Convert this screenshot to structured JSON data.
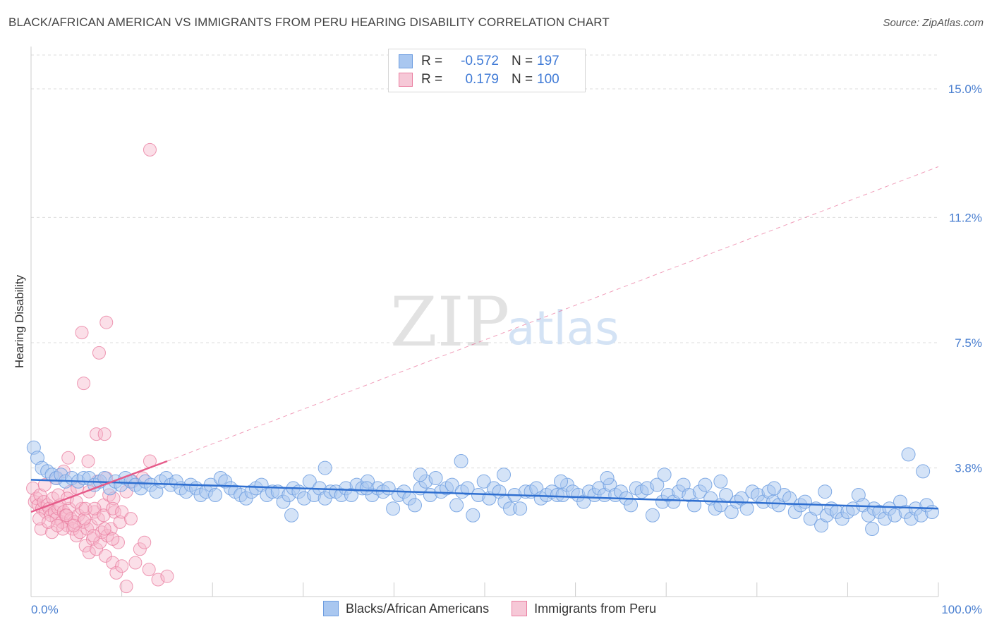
{
  "header": {
    "title": "BLACK/AFRICAN AMERICAN VS IMMIGRANTS FROM PERU HEARING DISABILITY CORRELATION CHART",
    "source": "Source: ZipAtlas.com"
  },
  "watermark": {
    "zip": "ZIP",
    "atlas": "atlas"
  },
  "legend": {
    "rows": [
      {
        "r_label": "R =",
        "r_value": "-0.572",
        "n_label": "N =",
        "n_value": "197"
      },
      {
        "r_label": "R =",
        "r_value": "0.179",
        "n_label": "N =",
        "n_value": "100"
      }
    ]
  },
  "bottom_legend": {
    "items": [
      {
        "label": "Blacks/African Americans"
      },
      {
        "label": "Immigrants from Peru"
      }
    ]
  },
  "colors": {
    "blue_fill": "#a9c7f0",
    "blue_stroke": "#6d9de0",
    "blue_line": "#2f6fd0",
    "pink_fill": "#f6b8cc",
    "pink_stroke": "#ea7fa1",
    "pink_line": "#e65b8a",
    "grid": "#dcdcdc",
    "tick_text": "#4a7fd0"
  },
  "chart_data": {
    "type": "scatter",
    "title": "BLACK/AFRICAN AMERICAN VS IMMIGRANTS FROM PERU HEARING DISABILITY CORRELATION CHART",
    "ylabel": "Hearing Disability",
    "xlabel": "",
    "xlim": [
      0,
      100
    ],
    "ylim": [
      0,
      16
    ],
    "x_tick_labels": [
      "0.0%",
      "100.0%"
    ],
    "y_ticks": [
      {
        "value": 3.8,
        "label": "3.8%"
      },
      {
        "value": 7.5,
        "label": "7.5%"
      },
      {
        "value": 11.2,
        "label": "11.2%"
      },
      {
        "value": 15.0,
        "label": "15.0%"
      }
    ],
    "grid": "horizontal dashed",
    "legend_position": "top-center",
    "series": [
      {
        "name": "Blacks/African Americans",
        "color": "#6d9de0",
        "trend": {
          "x": [
            0,
            100
          ],
          "y": [
            3.45,
            2.6
          ],
          "style": "solid"
        },
        "points": [
          [
            0.3,
            4.4
          ],
          [
            0.7,
            4.1
          ],
          [
            1.2,
            3.8
          ],
          [
            1.8,
            3.7
          ],
          [
            2.3,
            3.6
          ],
          [
            2.8,
            3.5
          ],
          [
            3.3,
            3.6
          ],
          [
            3.8,
            3.4
          ],
          [
            4.5,
            3.5
          ],
          [
            5.2,
            3.4
          ],
          [
            5.8,
            3.5
          ],
          [
            6.4,
            3.5
          ],
          [
            7.0,
            3.3
          ],
          [
            7.6,
            3.4
          ],
          [
            8.1,
            3.5
          ],
          [
            8.7,
            3.2
          ],
          [
            9.3,
            3.4
          ],
          [
            9.9,
            3.3
          ],
          [
            10.4,
            3.5
          ],
          [
            11.0,
            3.4
          ],
          [
            11.5,
            3.3
          ],
          [
            12.1,
            3.2
          ],
          [
            12.6,
            3.4
          ],
          [
            13.2,
            3.3
          ],
          [
            13.8,
            3.1
          ],
          [
            14.3,
            3.4
          ],
          [
            14.9,
            3.5
          ],
          [
            15.4,
            3.3
          ],
          [
            16.0,
            3.4
          ],
          [
            16.5,
            3.2
          ],
          [
            17.1,
            3.1
          ],
          [
            17.6,
            3.3
          ],
          [
            18.2,
            3.2
          ],
          [
            18.7,
            3.0
          ],
          [
            19.3,
            3.1
          ],
          [
            19.8,
            3.3
          ],
          [
            20.3,
            3.0
          ],
          [
            20.9,
            3.5
          ],
          [
            21.4,
            3.4
          ],
          [
            22.0,
            3.2
          ],
          [
            22.5,
            3.1
          ],
          [
            23.1,
            3.0
          ],
          [
            23.7,
            2.9
          ],
          [
            24.3,
            3.1
          ],
          [
            24.8,
            3.2
          ],
          [
            25.4,
            3.3
          ],
          [
            26.0,
            3.0
          ],
          [
            26.6,
            3.1
          ],
          [
            27.2,
            3.1
          ],
          [
            27.8,
            2.8
          ],
          [
            28.4,
            3.0
          ],
          [
            28.9,
            3.2
          ],
          [
            29.5,
            3.1
          ],
          [
            30.1,
            2.9
          ],
          [
            30.7,
            3.4
          ],
          [
            31.2,
            3.0
          ],
          [
            31.8,
            3.2
          ],
          [
            32.4,
            2.9
          ],
          [
            33.0,
            3.1
          ],
          [
            33.6,
            3.1
          ],
          [
            34.2,
            3.0
          ],
          [
            34.7,
            3.2
          ],
          [
            35.3,
            3.0
          ],
          [
            35.9,
            3.3
          ],
          [
            36.5,
            3.2
          ],
          [
            37.1,
            3.4
          ],
          [
            37.6,
            3.0
          ],
          [
            38.2,
            3.2
          ],
          [
            38.8,
            3.1
          ],
          [
            39.4,
            3.2
          ],
          [
            39.9,
            2.6
          ],
          [
            40.5,
            3.0
          ],
          [
            41.1,
            3.1
          ],
          [
            41.7,
            2.9
          ],
          [
            42.3,
            2.7
          ],
          [
            42.9,
            3.2
          ],
          [
            43.5,
            3.4
          ],
          [
            44.0,
            3.0
          ],
          [
            44.6,
            3.5
          ],
          [
            45.2,
            3.1
          ],
          [
            45.8,
            3.2
          ],
          [
            46.4,
            3.3
          ],
          [
            46.9,
            2.7
          ],
          [
            47.5,
            3.1
          ],
          [
            48.1,
            3.2
          ],
          [
            48.7,
            2.4
          ],
          [
            49.3,
            3.0
          ],
          [
            49.9,
            3.4
          ],
          [
            50.5,
            2.9
          ],
          [
            51.0,
            3.2
          ],
          [
            51.6,
            3.1
          ],
          [
            52.2,
            2.8
          ],
          [
            52.8,
            2.6
          ],
          [
            53.3,
            3.0
          ],
          [
            53.9,
            2.6
          ],
          [
            54.5,
            3.1
          ],
          [
            55.1,
            3.1
          ],
          [
            55.7,
            3.2
          ],
          [
            56.2,
            2.9
          ],
          [
            56.8,
            3.0
          ],
          [
            57.4,
            3.1
          ],
          [
            58.0,
            3.0
          ],
          [
            58.6,
            3.0
          ],
          [
            59.1,
            3.3
          ],
          [
            59.7,
            3.1
          ],
          [
            60.3,
            3.0
          ],
          [
            60.9,
            2.8
          ],
          [
            61.5,
            3.1
          ],
          [
            62.1,
            3.0
          ],
          [
            62.6,
            3.2
          ],
          [
            63.2,
            3.0
          ],
          [
            63.8,
            3.3
          ],
          [
            64.4,
            3.0
          ],
          [
            65.0,
            3.1
          ],
          [
            65.6,
            2.9
          ],
          [
            66.1,
            2.7
          ],
          [
            66.7,
            3.2
          ],
          [
            67.3,
            3.1
          ],
          [
            67.9,
            3.2
          ],
          [
            68.5,
            2.4
          ],
          [
            69.0,
            3.3
          ],
          [
            69.6,
            2.8
          ],
          [
            70.2,
            3.0
          ],
          [
            70.8,
            2.8
          ],
          [
            71.4,
            3.1
          ],
          [
            71.9,
            3.3
          ],
          [
            72.5,
            3.0
          ],
          [
            73.1,
            2.7
          ],
          [
            73.7,
            3.1
          ],
          [
            74.3,
            3.3
          ],
          [
            74.9,
            2.9
          ],
          [
            75.4,
            2.6
          ],
          [
            76.0,
            2.7
          ],
          [
            76.6,
            3.0
          ],
          [
            77.2,
            2.5
          ],
          [
            77.8,
            2.8
          ],
          [
            78.3,
            2.9
          ],
          [
            78.9,
            2.6
          ],
          [
            79.5,
            3.1
          ],
          [
            80.1,
            3.0
          ],
          [
            80.7,
            2.8
          ],
          [
            81.3,
            3.1
          ],
          [
            81.8,
            2.8
          ],
          [
            82.4,
            2.7
          ],
          [
            83.0,
            3.0
          ],
          [
            83.6,
            2.9
          ],
          [
            84.2,
            2.5
          ],
          [
            84.8,
            2.7
          ],
          [
            85.3,
            2.8
          ],
          [
            85.9,
            2.3
          ],
          [
            86.5,
            2.6
          ],
          [
            87.1,
            2.1
          ],
          [
            87.7,
            2.4
          ],
          [
            88.2,
            2.6
          ],
          [
            88.8,
            2.5
          ],
          [
            89.4,
            2.3
          ],
          [
            90.0,
            2.5
          ],
          [
            90.6,
            2.6
          ],
          [
            91.2,
            3.0
          ],
          [
            91.7,
            2.7
          ],
          [
            92.3,
            2.4
          ],
          [
            92.9,
            2.6
          ],
          [
            93.5,
            2.5
          ],
          [
            94.1,
            2.3
          ],
          [
            94.6,
            2.6
          ],
          [
            95.2,
            2.4
          ],
          [
            95.8,
            2.8
          ],
          [
            96.4,
            2.5
          ],
          [
            97.0,
            2.3
          ],
          [
            97.5,
            2.6
          ],
          [
            98.1,
            2.4
          ],
          [
            98.7,
            2.7
          ],
          [
            99.3,
            2.5
          ],
          [
            28.7,
            2.4
          ],
          [
            32.4,
            3.8
          ],
          [
            37.0,
            3.2
          ],
          [
            42.9,
            3.6
          ],
          [
            47.4,
            4.0
          ],
          [
            52.1,
            3.6
          ],
          [
            58.4,
            3.4
          ],
          [
            63.5,
            3.5
          ],
          [
            69.8,
            3.6
          ],
          [
            76.0,
            3.4
          ],
          [
            81.9,
            3.2
          ],
          [
            87.5,
            3.1
          ],
          [
            92.7,
            2.0
          ],
          [
            96.7,
            4.2
          ],
          [
            98.3,
            3.7
          ]
        ]
      },
      {
        "name": "Immigrants from Peru",
        "color": "#ea7fa1",
        "trend": {
          "x": [
            0,
            15
          ],
          "y": [
            2.5,
            4.0
          ],
          "style": "solid",
          "extended_to": [
            100,
            12.7
          ],
          "extended_style": "dashed"
        },
        "points": [
          [
            0.2,
            3.2
          ],
          [
            0.4,
            2.8
          ],
          [
            0.6,
            2.9
          ],
          [
            0.8,
            2.7
          ],
          [
            1.0,
            3.0
          ],
          [
            1.2,
            2.6
          ],
          [
            1.4,
            2.8
          ],
          [
            1.6,
            2.5
          ],
          [
            1.8,
            2.7
          ],
          [
            2.0,
            2.6
          ],
          [
            2.2,
            2.4
          ],
          [
            2.4,
            2.9
          ],
          [
            2.6,
            2.5
          ],
          [
            2.8,
            2.3
          ],
          [
            3.0,
            2.6
          ],
          [
            3.2,
            2.7
          ],
          [
            3.4,
            2.2
          ],
          [
            3.6,
            2.5
          ],
          [
            3.8,
            2.4
          ],
          [
            4.0,
            2.1
          ],
          [
            4.2,
            2.6
          ],
          [
            4.4,
            2.3
          ],
          [
            4.6,
            2.0
          ],
          [
            4.8,
            2.2
          ],
          [
            5.0,
            1.8
          ],
          [
            5.2,
            2.4
          ],
          [
            5.4,
            1.9
          ],
          [
            5.6,
            2.6
          ],
          [
            5.8,
            2.2
          ],
          [
            6.0,
            1.5
          ],
          [
            6.2,
            2.0
          ],
          [
            6.4,
            1.3
          ],
          [
            6.6,
            2.1
          ],
          [
            6.8,
            1.7
          ],
          [
            7.0,
            2.5
          ],
          [
            7.2,
            1.4
          ],
          [
            7.4,
            2.3
          ],
          [
            7.6,
            1.6
          ],
          [
            7.8,
            1.9
          ],
          [
            8.0,
            2.7
          ],
          [
            8.2,
            1.2
          ],
          [
            8.4,
            1.8
          ],
          [
            8.6,
            3.0
          ],
          [
            8.8,
            2.0
          ],
          [
            9.0,
            1.0
          ],
          [
            9.2,
            2.5
          ],
          [
            9.4,
            0.7
          ],
          [
            9.6,
            1.6
          ],
          [
            9.8,
            2.2
          ],
          [
            10.0,
            0.9
          ],
          [
            1.5,
            3.3
          ],
          [
            2.7,
            3.5
          ],
          [
            3.6,
            3.7
          ],
          [
            4.3,
            3.1
          ],
          [
            5.1,
            3.2
          ],
          [
            6.4,
            3.1
          ],
          [
            7.3,
            3.4
          ],
          [
            8.3,
            3.5
          ],
          [
            9.1,
            2.9
          ],
          [
            10.5,
            3.1
          ],
          [
            11.2,
            3.4
          ],
          [
            12.3,
            3.5
          ],
          [
            13.1,
            4.0
          ],
          [
            4.1,
            4.1
          ],
          [
            6.3,
            4.0
          ],
          [
            7.2,
            4.8
          ],
          [
            8.1,
            4.8
          ],
          [
            5.8,
            6.3
          ],
          [
            7.5,
            7.2
          ],
          [
            5.6,
            7.8
          ],
          [
            8.3,
            8.1
          ],
          [
            13.1,
            13.2
          ],
          [
            1.1,
            2.0
          ],
          [
            2.3,
            1.9
          ],
          [
            3.5,
            2.0
          ],
          [
            4.7,
            2.1
          ],
          [
            5.9,
            2.3
          ],
          [
            6.9,
            1.8
          ],
          [
            8.1,
            2.0
          ],
          [
            9.0,
            1.7
          ],
          [
            3.0,
            3.0
          ],
          [
            4.0,
            2.9
          ],
          [
            5.0,
            2.8
          ],
          [
            6.0,
            2.6
          ],
          [
            7.0,
            2.6
          ],
          [
            8.0,
            2.4
          ],
          [
            9.0,
            2.6
          ],
          [
            10.0,
            2.5
          ],
          [
            11.0,
            2.3
          ],
          [
            12.0,
            1.4
          ],
          [
            13.0,
            0.8
          ],
          [
            14.0,
            0.5
          ],
          [
            15.0,
            0.6
          ],
          [
            10.5,
            0.3
          ],
          [
            11.5,
            1.0
          ],
          [
            12.5,
            1.6
          ],
          [
            0.9,
            2.3
          ],
          [
            1.9,
            2.2
          ],
          [
            2.9,
            2.1
          ],
          [
            3.9,
            2.4
          ]
        ]
      }
    ]
  }
}
